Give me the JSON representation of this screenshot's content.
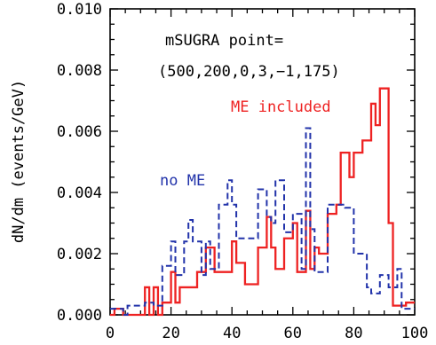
{
  "chart_data": {
    "type": "line",
    "step": true,
    "ylabel": "dN/dm (events/GeV)",
    "xlabel": "",
    "xlim": [
      0,
      100
    ],
    "ylim": [
      0,
      0.01
    ],
    "xticks": [
      0,
      20,
      40,
      60,
      80,
      100
    ],
    "xtick_labels": [
      "0",
      "20",
      "40",
      "60",
      "80",
      "100"
    ],
    "yticks": [
      0,
      0.002,
      0.004,
      0.006,
      0.008,
      0.01
    ],
    "ytick_labels": [
      "0.000",
      "0.002",
      "0.004",
      "0.006",
      "0.008",
      "0.010"
    ],
    "grid": false,
    "bin_width": 1.43,
    "x": [
      0,
      1.43,
      2.86,
      4.29,
      5.71,
      7.14,
      8.57,
      10,
      11.43,
      12.86,
      14.29,
      15.71,
      17.14,
      18.57,
      20,
      21.43,
      22.86,
      24.29,
      25.71,
      27.14,
      28.57,
      30,
      31.43,
      32.86,
      34.29,
      35.71,
      37.14,
      38.57,
      40,
      41.43,
      42.86,
      44.29,
      45.71,
      47.14,
      48.57,
      50,
      51.43,
      52.86,
      54.29,
      55.71,
      57.14,
      58.57,
      60,
      61.43,
      62.86,
      64.29,
      65.71,
      67.14,
      68.57,
      70,
      71.43,
      72.86,
      74.29,
      75.71,
      77.14,
      78.57,
      80,
      81.43,
      82.86,
      84.29,
      85.71,
      87.14,
      88.57,
      90,
      91.43,
      92.86,
      94.29,
      95.71,
      97.14,
      98.57
    ],
    "series": [
      {
        "name": "ME included",
        "color": "#ee2222",
        "dash": false,
        "values": [
          0.0,
          0.0002,
          0.0002,
          0.0,
          0.0,
          0.0,
          0.0,
          0.0,
          0.0009,
          0.0,
          0.0009,
          0.0,
          0.0004,
          0.0004,
          0.0014,
          0.0004,
          0.0009,
          0.0009,
          0.0009,
          0.0009,
          0.0014,
          0.0014,
          0.0022,
          0.0022,
          0.0014,
          0.0014,
          0.0014,
          0.0014,
          0.0024,
          0.0017,
          0.0017,
          0.001,
          0.001,
          0.001,
          0.0022,
          0.0022,
          0.0032,
          0.0022,
          0.0015,
          0.0015,
          0.0025,
          0.0025,
          0.003,
          0.0014,
          0.0014,
          0.0034,
          0.0015,
          0.0022,
          0.002,
          0.002,
          0.0033,
          0.0033,
          0.0036,
          0.0053,
          0.0053,
          0.0045,
          0.0053,
          0.0053,
          0.0057,
          0.0057,
          0.0069,
          0.0062,
          0.0074,
          0.0074,
          0.003,
          0.0003,
          0.0003,
          0.0003,
          0.0004,
          0.0004
        ]
      },
      {
        "name": "no ME",
        "color": "#2233aa",
        "dash": true,
        "values": [
          0.0002,
          0.0002,
          0.0002,
          0.0,
          0.0003,
          0.0003,
          0.0003,
          0.0003,
          0.0004,
          0.0004,
          0.0003,
          0.0003,
          0.0016,
          0.0016,
          0.0024,
          0.0013,
          0.0013,
          0.0024,
          0.0031,
          0.0024,
          0.0024,
          0.0013,
          0.0024,
          0.0015,
          0.0015,
          0.0036,
          0.0036,
          0.0044,
          0.0036,
          0.0025,
          0.0025,
          0.0025,
          0.0025,
          0.0025,
          0.0041,
          0.0041,
          0.0032,
          0.003,
          0.0044,
          0.0044,
          0.0027,
          0.0027,
          0.0033,
          0.0033,
          0.0015,
          0.0061,
          0.0028,
          0.0014,
          0.0014,
          0.0014,
          0.0036,
          0.0036,
          0.0036,
          0.0036,
          0.0035,
          0.0035,
          0.002,
          0.002,
          0.002,
          0.0009,
          0.0007,
          0.0007,
          0.0013,
          0.0013,
          0.0009,
          0.0009,
          0.0015,
          0.0002,
          0.0002,
          0.0002
        ]
      }
    ],
    "annotations": [
      {
        "text": "mSUGRA point=",
        "color": "#000000"
      },
      {
        "text": "(500,200,0,3,−1,175)",
        "color": "#000000"
      },
      {
        "text": "ME included",
        "color": "#ee2222"
      },
      {
        "text": "no ME",
        "color": "#2233aa"
      }
    ]
  }
}
